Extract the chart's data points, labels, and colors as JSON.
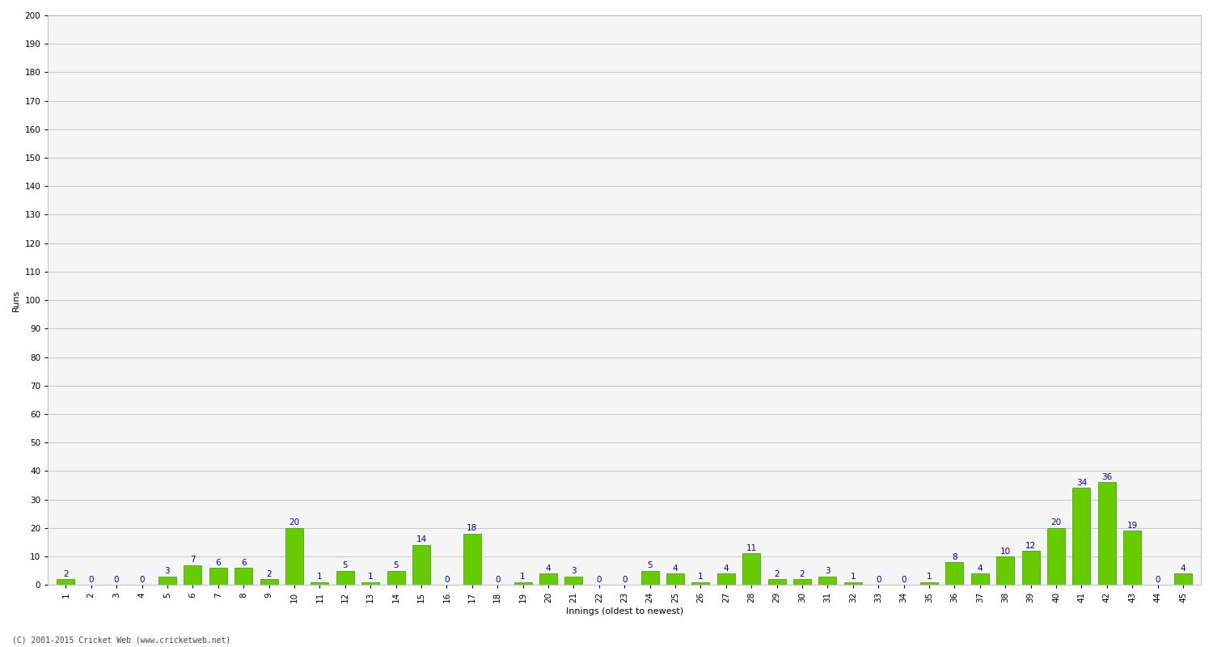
{
  "values": [
    2,
    0,
    0,
    0,
    3,
    7,
    6,
    6,
    2,
    20,
    1,
    5,
    1,
    5,
    14,
    0,
    18,
    0,
    1,
    4,
    3,
    0,
    0,
    5,
    4,
    1,
    4,
    11,
    2,
    2,
    3,
    1,
    0,
    0,
    1,
    8,
    4,
    10,
    12,
    20,
    34,
    36,
    19,
    0,
    4
  ],
  "labels": [
    "1",
    "2",
    "3",
    "4",
    "5",
    "6",
    "7",
    "8",
    "9",
    "10",
    "11",
    "12",
    "13",
    "14",
    "15",
    "16",
    "17",
    "18",
    "19",
    "20",
    "21",
    "22",
    "23",
    "24",
    "25",
    "26",
    "27",
    "28",
    "29",
    "30",
    "31",
    "32",
    "33",
    "34",
    "35",
    "36",
    "37",
    "38",
    "39",
    "40",
    "41",
    "42",
    "43",
    "44",
    "45"
  ],
  "bar_color": "#66cc00",
  "bar_edge_color": "#339900",
  "label_color": "#0000cc",
  "ylabel": "Runs",
  "xlabel": "Innings (oldest to newest)",
  "ylim": [
    0,
    200
  ],
  "yticks": [
    0,
    10,
    20,
    30,
    40,
    50,
    60,
    70,
    80,
    90,
    100,
    110,
    120,
    130,
    140,
    150,
    160,
    170,
    180,
    190,
    200
  ],
  "grid_color": "#cccccc",
  "bg_color": "#ffffff",
  "plot_bg_color": "#f5f5f5",
  "watermark": "(C) 2001-2015 Cricket Web (www.cricketweb.net)",
  "label_fontsize": 7.5,
  "tick_fontsize": 7.5,
  "ylabel_fontsize": 8,
  "xlabel_fontsize": 8,
  "watermark_fontsize": 7
}
